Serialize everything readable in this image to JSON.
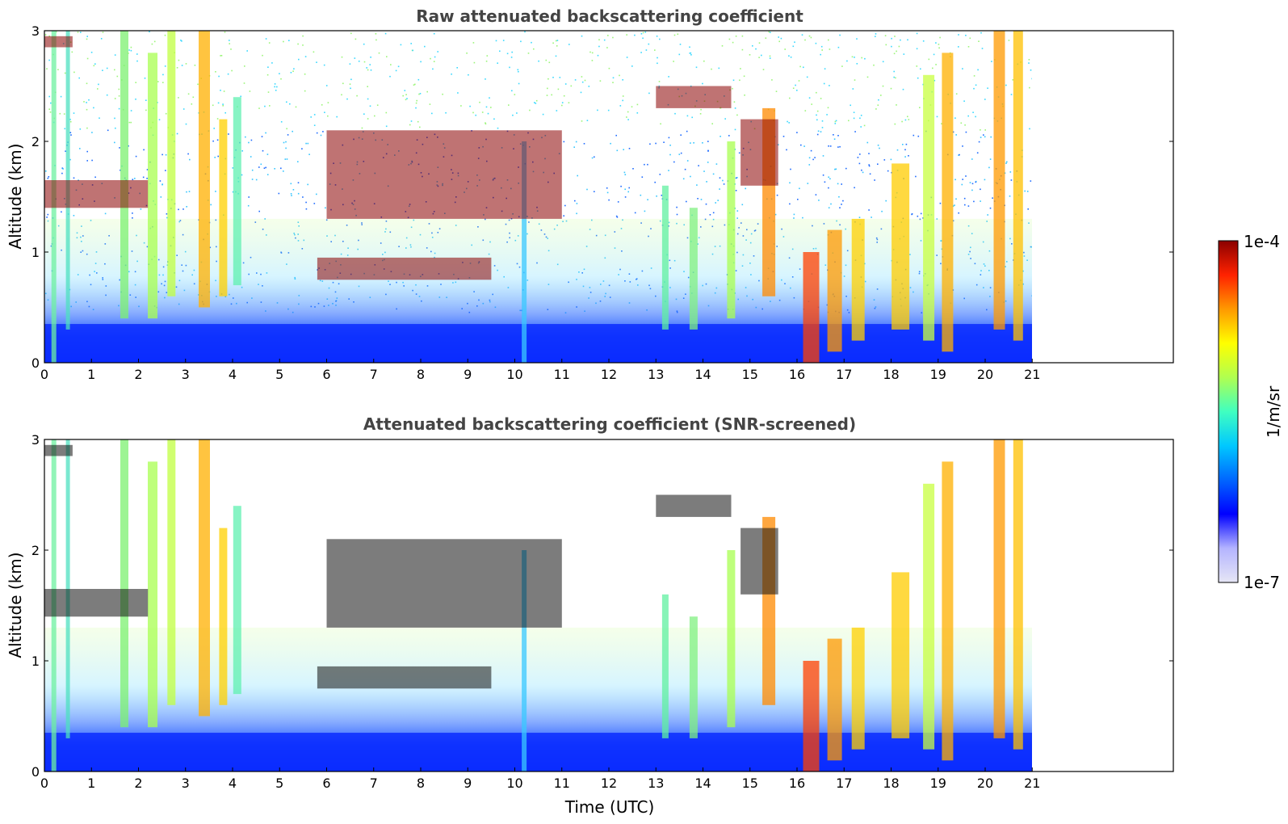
{
  "chart_data": [
    {
      "type": "heatmap",
      "title": "Raw attenuated backscattering coefficient",
      "xlabel": "",
      "ylabel": "Altitude (km)",
      "xlim": [
        0,
        24
      ],
      "ylim": [
        0,
        3
      ],
      "x_ticks": [
        0,
        1,
        2,
        3,
        4,
        5,
        6,
        7,
        8,
        9,
        10,
        11,
        12,
        13,
        14,
        15,
        16,
        17,
        18,
        19,
        20,
        21
      ],
      "y_ticks": [
        0,
        1,
        2,
        3
      ],
      "data_extent_hours": [
        0,
        21
      ],
      "color_scale": "log",
      "layers": [
        {
          "feature": "cloud layer",
          "start": 0.0,
          "end": 0.6,
          "alt_low": 2.85,
          "alt_high": 2.95
        },
        {
          "feature": "cloud layer",
          "start": 0.0,
          "end": 2.2,
          "alt_low": 1.4,
          "alt_high": 1.65
        },
        {
          "feature": "cloud layer",
          "start": 6.0,
          "end": 11.0,
          "alt_low": 1.3,
          "alt_high": 2.1
        },
        {
          "feature": "cloud layer",
          "start": 5.8,
          "end": 9.5,
          "alt_low": 0.75,
          "alt_high": 0.95
        },
        {
          "feature": "cloud layer",
          "start": 13.0,
          "end": 14.6,
          "alt_low": 2.3,
          "alt_high": 2.5
        },
        {
          "feature": "cloud layer",
          "start": 14.8,
          "end": 15.6,
          "alt_low": 1.6,
          "alt_high": 2.2
        }
      ]
    },
    {
      "type": "heatmap",
      "title": "Attenuated backscattering coefficient (SNR-screened)",
      "xlabel": "Time (UTC)",
      "ylabel": "Altitude (km)",
      "xlim": [
        0,
        24
      ],
      "ylim": [
        0,
        3
      ],
      "x_ticks": [
        0,
        1,
        2,
        3,
        4,
        5,
        6,
        7,
        8,
        9,
        10,
        11,
        12,
        13,
        14,
        15,
        16,
        17,
        18,
        19,
        20,
        21
      ],
      "y_ticks": [
        0,
        1,
        2,
        3
      ],
      "data_extent_hours": [
        0,
        21
      ],
      "color_scale": "log"
    }
  ],
  "colorbar": {
    "label": "1/m/sr",
    "min_label": "1e-7",
    "max_label": "1e-4",
    "min": 1e-07,
    "max": 0.0001,
    "colormap": "jet",
    "colors": [
      "#e6e6f5",
      "#b4b4ff",
      "#0000ff",
      "#0066ff",
      "#00c8ff",
      "#40ffc0",
      "#b0ff50",
      "#ffff00",
      "#ff9900",
      "#ff2200",
      "#8b0000"
    ]
  }
}
